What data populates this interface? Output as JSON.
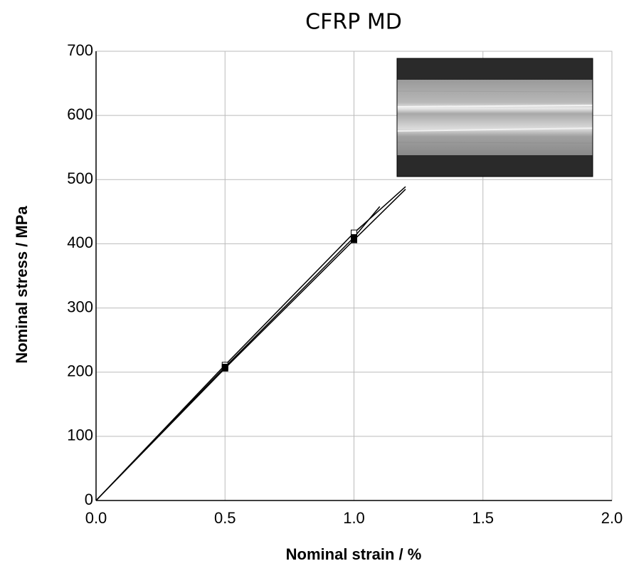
{
  "chart_data": {
    "type": "line",
    "title": "CFRP MD",
    "xlabel": "Nominal strain / %",
    "ylabel": "Nominal stress / MPa",
    "xlim": [
      0,
      2
    ],
    "ylim": [
      0,
      700
    ],
    "xticks": [
      {
        "value": 0,
        "label": "0.0"
      },
      {
        "value": 0.5,
        "label": "0.5"
      },
      {
        "value": 1,
        "label": "1.0"
      },
      {
        "value": 1.5,
        "label": "1.5"
      },
      {
        "value": 2,
        "label": "2.0"
      }
    ],
    "yticks": [
      0,
      100,
      200,
      300,
      400,
      500,
      600,
      700
    ],
    "grid": true,
    "series": [
      {
        "color": "#000000",
        "marker_fill": "#ffffff",
        "x": [
          0,
          0.5,
          1.0,
          1.2
        ],
        "values": [
          0,
          211,
          417,
          489
        ]
      },
      {
        "color": "#000000",
        "marker_fill": "#000000",
        "x": [
          0,
          0.5,
          1.0,
          1.1
        ],
        "values": [
          0,
          208,
          410,
          458
        ]
      },
      {
        "color": "#000000",
        "marker_fill": "#000000",
        "x": [
          0,
          0.5,
          1.0,
          1.2
        ],
        "values": [
          0,
          206,
          406,
          485
        ]
      }
    ]
  }
}
